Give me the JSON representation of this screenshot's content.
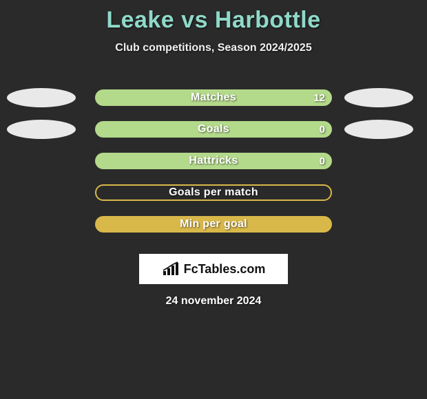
{
  "title_color": "#8fd9c9",
  "background_color": "#2a2a2a",
  "title": "Leake vs Harbottle",
  "subtitle": "Club competitions, Season 2024/2025",
  "date": "24 november 2024",
  "logo_text": "FcTables.com",
  "bar_track_width": 344,
  "bar_track_height": 24,
  "stats": [
    {
      "label": "Matches",
      "value_right": "12",
      "track_bg": "#6fa83a",
      "left_fill_color": "#b3d98a",
      "right_fill_color": "#b3d98a",
      "left_fill_width": 0,
      "right_fill_width": 344,
      "show_left_ellipse": true,
      "show_right_ellipse": true,
      "left_ellipse_color": "#e9e9e9",
      "right_ellipse_color": "#e9e9e9"
    },
    {
      "label": "Goals",
      "value_right": "0",
      "track_bg": "#b3d98a",
      "left_fill_color": "#6fa83a",
      "right_fill_color": "#6fa83a",
      "left_fill_width": 0,
      "right_fill_width": 0,
      "show_left_ellipse": true,
      "show_right_ellipse": true,
      "left_ellipse_color": "#e9e9e9",
      "right_ellipse_color": "#e9e9e9"
    },
    {
      "label": "Hattricks",
      "value_right": "0",
      "track_bg": "#b3d98a",
      "left_fill_color": "#6fa83a",
      "right_fill_color": "#6fa83a",
      "left_fill_width": 0,
      "right_fill_width": 0,
      "show_left_ellipse": false,
      "show_right_ellipse": false,
      "left_ellipse_color": "#e9e9e9",
      "right_ellipse_color": "#e9e9e9"
    },
    {
      "label": "Goals per match",
      "value_right": "",
      "track_bg": "#2a2a2a",
      "border_color": "#d9b84a",
      "left_fill_color": "#d9b84a",
      "right_fill_color": "#d9b84a",
      "left_fill_width": 0,
      "right_fill_width": 0,
      "show_left_ellipse": false,
      "show_right_ellipse": false,
      "left_ellipse_color": "#e9e9e9",
      "right_ellipse_color": "#e9e9e9"
    },
    {
      "label": "Min per goal",
      "value_right": "",
      "track_bg": "#d9b84a",
      "left_fill_color": "#b89026",
      "right_fill_color": "#b89026",
      "left_fill_width": 0,
      "right_fill_width": 0,
      "show_left_ellipse": false,
      "show_right_ellipse": false,
      "left_ellipse_color": "#e9e9e9",
      "right_ellipse_color": "#e9e9e9"
    }
  ]
}
